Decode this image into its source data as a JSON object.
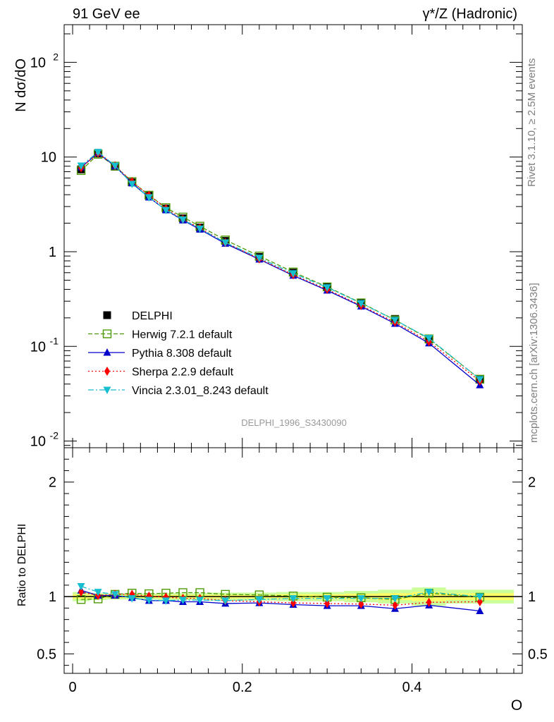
{
  "header": {
    "left": "91 GeV ee",
    "right": "γ*/Z (Hadronic)"
  },
  "side_labels": {
    "rivet": "Rivet 3.1.10, ≥ 2.5M events",
    "source": "mcplots.cern.ch [arXiv:1306.3436]"
  },
  "chart_data": [
    {
      "type": "line",
      "panel": "main",
      "ylabel": "N dσ/dO",
      "yscale": "log",
      "ylim": [
        0.0085,
        250
      ],
      "xlim": [
        -0.01,
        0.53
      ],
      "y_ticks": [
        "10^-2",
        "10^-1",
        "1",
        "10",
        "10^2"
      ],
      "watermark": "DELPHI_1996_S3430090",
      "legend_position": "left-middle",
      "x": [
        0.01,
        0.03,
        0.05,
        0.07,
        0.09,
        0.11,
        0.13,
        0.15,
        0.18,
        0.22,
        0.26,
        0.3,
        0.34,
        0.38,
        0.42,
        0.48
      ],
      "series": [
        {
          "name": "DELPHI",
          "color": "#000000",
          "marker": "square-filled",
          "values": [
            7.4,
            10.9,
            7.9,
            5.4,
            3.9,
            2.85,
            2.25,
            1.8,
            1.3,
            0.88,
            0.6,
            0.425,
            0.29,
            0.195,
            0.118,
            0.045
          ]
        },
        {
          "name": "Herwig 7.2.1 default",
          "color": "#4e9a06",
          "marker": "square-open",
          "dash": "dashed",
          "values": [
            7.2,
            10.7,
            8.0,
            5.5,
            3.95,
            2.92,
            2.32,
            1.86,
            1.33,
            0.9,
            0.61,
            0.425,
            0.288,
            0.19,
            0.12,
            0.045
          ]
        },
        {
          "name": "Pythia 8.308 default",
          "color": "#0000cc",
          "marker": "triangle-up",
          "dash": "solid",
          "values": [
            7.8,
            11.0,
            8.0,
            5.3,
            3.75,
            2.75,
            2.15,
            1.72,
            1.22,
            0.83,
            0.56,
            0.39,
            0.265,
            0.174,
            0.108,
            0.039
          ]
        },
        {
          "name": "Sherpa 2.2.9 default",
          "color": "#ff0000",
          "marker": "diamond",
          "dash": "dotted",
          "values": [
            7.7,
            11.0,
            8.1,
            5.5,
            3.95,
            2.85,
            2.2,
            1.78,
            1.25,
            0.84,
            0.57,
            0.4,
            0.27,
            0.18,
            0.112,
            0.043
          ]
        },
        {
          "name": "Vincia 2.3.01_8.243 default",
          "color": "#17becf",
          "marker": "triangle-down",
          "dash": "dashdot",
          "values": [
            8.1,
            11.3,
            8.1,
            5.2,
            3.75,
            2.75,
            2.18,
            1.75,
            1.25,
            0.86,
            0.59,
            0.42,
            0.285,
            0.19,
            0.122,
            0.045
          ]
        }
      ]
    },
    {
      "type": "line",
      "panel": "ratio",
      "ylabel": "Ratio to DELPHI",
      "xlabel": "O",
      "ylim": [
        0.33,
        2.3
      ],
      "xlim": [
        -0.01,
        0.53
      ],
      "x_ticks": [
        "0",
        "0.2",
        "0.4"
      ],
      "y_ticks": [
        "0.5",
        "1",
        "2"
      ],
      "x": [
        0.01,
        0.03,
        0.05,
        0.07,
        0.09,
        0.11,
        0.13,
        0.15,
        0.18,
        0.22,
        0.26,
        0.3,
        0.34,
        0.38,
        0.42,
        0.48
      ],
      "band_edges": [
        0.0,
        0.02,
        0.04,
        0.06,
        0.08,
        0.1,
        0.12,
        0.14,
        0.16,
        0.2,
        0.24,
        0.28,
        0.32,
        0.36,
        0.4,
        0.44,
        0.52
      ],
      "band_inner": [
        0.02,
        0.015,
        0.012,
        0.012,
        0.012,
        0.015,
        0.015,
        0.015,
        0.015,
        0.015,
        0.02,
        0.02,
        0.025,
        0.03,
        0.04,
        0.03
      ],
      "band_outer": [
        0.04,
        0.03,
        0.025,
        0.025,
        0.025,
        0.03,
        0.03,
        0.03,
        0.035,
        0.035,
        0.04,
        0.04,
        0.05,
        0.06,
        0.08,
        0.06
      ],
      "band_colors": {
        "inner": "#ffff66",
        "outer": "#ccff99"
      },
      "series": [
        {
          "name": "Herwig 7.2.1 default",
          "color": "#4e9a06",
          "marker": "square-open",
          "dash": "dashed",
          "values": [
            0.975,
            0.98,
            1.02,
            1.03,
            1.025,
            1.03,
            1.035,
            1.035,
            1.02,
            1.015,
            1.005,
            0.995,
            0.99,
            0.975,
            1.03,
            0.995
          ]
        },
        {
          "name": "Pythia 8.308 default",
          "color": "#0000cc",
          "marker": "triangle-up",
          "dash": "solid",
          "values": [
            1.055,
            1.01,
            1.01,
            0.99,
            0.965,
            0.965,
            0.955,
            0.955,
            0.94,
            0.945,
            0.93,
            0.92,
            0.92,
            0.895,
            0.925,
            0.875
          ]
        },
        {
          "name": "Sherpa 2.2.9 default",
          "color": "#ff0000",
          "marker": "diamond",
          "dash": "dotted",
          "values": [
            1.04,
            1.01,
            1.02,
            1.02,
            1.005,
            0.995,
            0.985,
            0.985,
            0.965,
            0.955,
            0.945,
            0.94,
            0.935,
            0.925,
            0.95,
            0.955
          ]
        },
        {
          "name": "Vincia 2.3.01_8.243 default",
          "color": "#17becf",
          "marker": "triangle-down",
          "dash": "dashdot",
          "values": [
            1.09,
            1.04,
            1.02,
            0.985,
            0.97,
            0.965,
            0.97,
            0.97,
            0.965,
            0.975,
            0.985,
            0.985,
            0.985,
            0.985,
            1.04,
            1.0
          ]
        }
      ]
    }
  ]
}
